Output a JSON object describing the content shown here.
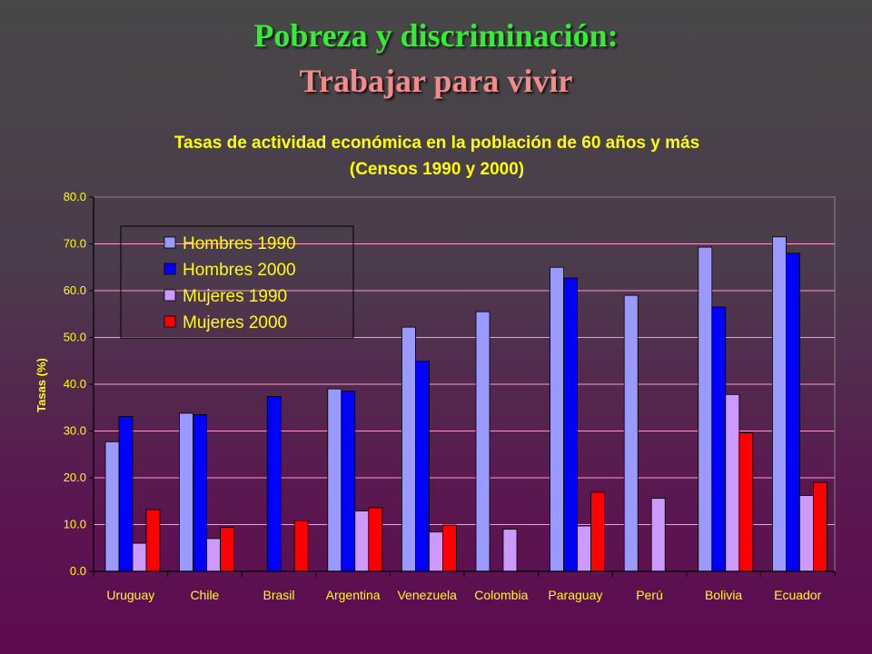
{
  "slide": {
    "title_line1": "Pobreza y discriminación:",
    "title_line2": "Trabajar para vivir"
  },
  "colors": {
    "hombres_1990": "#9999ff",
    "hombres_2000": "#0000ff",
    "mujeres_1990": "#cc99ff",
    "mujeres_2000": "#ff0000",
    "text": "#ffff00",
    "grid": "#ff99cc"
  },
  "chart_data": {
    "type": "bar",
    "title_line1": "Tasas de actividad económica en la población de 60 años y más",
    "title_line2": "(Censos 1990 y 2000)",
    "xlabel": "",
    "ylabel": "Tasas (%)",
    "ylim": [
      0,
      80
    ],
    "yticks": [
      "0.0",
      "10.0",
      "20.0",
      "30.0",
      "40.0",
      "50.0",
      "60.0",
      "70.0",
      "80.0"
    ],
    "grid": true,
    "legend_position": "top-left",
    "categories": [
      "Uruguay",
      "Chile",
      "Brasil",
      "Argentina",
      "Venezuela",
      "Colombia",
      "Paraguay",
      "Perú",
      "Bolivia",
      "Ecuador"
    ],
    "series": [
      {
        "name": "Hombres 1990",
        "values": [
          27.7,
          33.8,
          null,
          39.0,
          52.2,
          55.5,
          65.0,
          59.0,
          69.3,
          71.5
        ]
      },
      {
        "name": "Hombres 2000",
        "values": [
          33.1,
          33.5,
          37.4,
          38.5,
          44.9,
          null,
          62.7,
          null,
          56.5,
          68.0
        ]
      },
      {
        "name": "Mujeres 1990",
        "values": [
          6.0,
          7.0,
          null,
          12.9,
          8.4,
          9.0,
          9.7,
          15.6,
          37.8,
          16.2
        ]
      },
      {
        "name": "Mujeres 2000",
        "values": [
          13.2,
          9.4,
          10.8,
          13.6,
          9.9,
          null,
          16.9,
          null,
          29.6,
          19.0
        ]
      }
    ]
  }
}
